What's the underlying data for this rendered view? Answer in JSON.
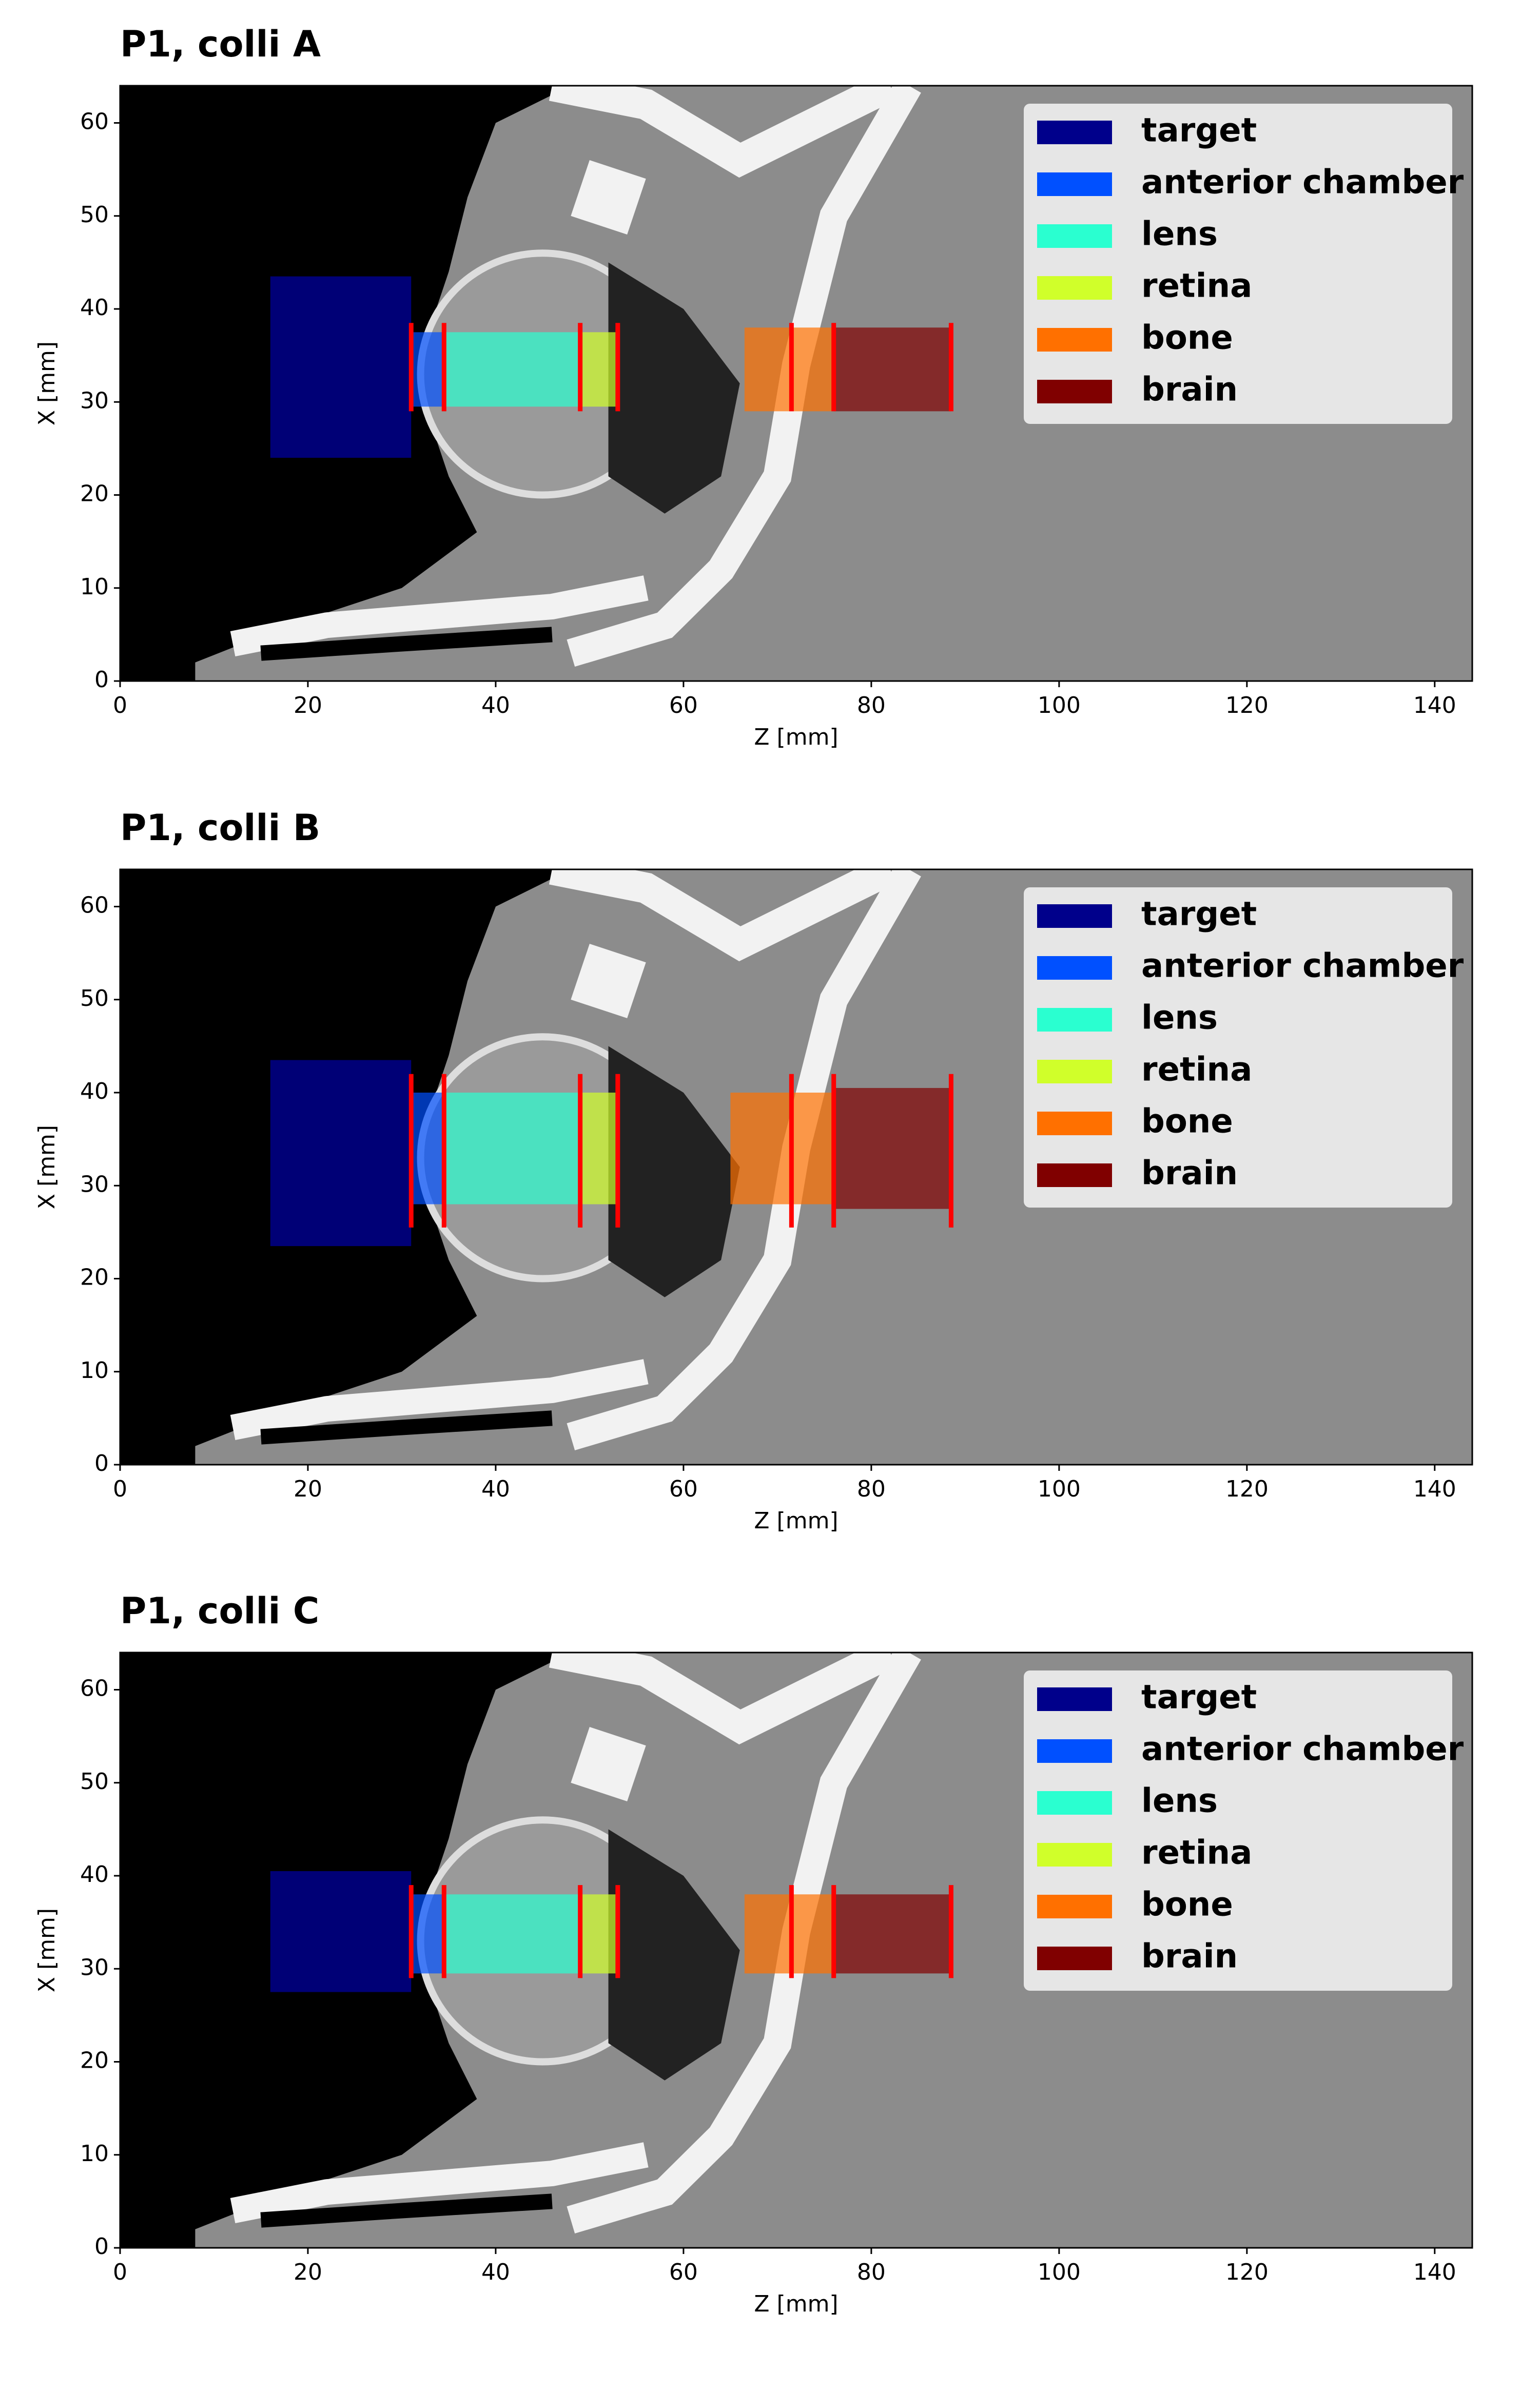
{
  "chart_data": [
    {
      "type": "image-overlay",
      "title": "P1, colli A",
      "xlabel": "Z [mm]",
      "ylabel": "X [mm]",
      "xlim": [
        0,
        144
      ],
      "ylim": [
        0,
        64
      ],
      "xticks": [
        0,
        20,
        40,
        60,
        80,
        100,
        120,
        140
      ],
      "yticks": [
        0,
        10,
        20,
        30,
        40,
        50,
        60
      ],
      "legend_loc": "upper right",
      "series": [
        {
          "name": "target",
          "color": "#00008b",
          "z": [
            16,
            31
          ],
          "x": [
            24,
            43.5
          ]
        },
        {
          "name": "anterior chamber",
          "color": "#0050ff",
          "z": [
            31,
            34.5
          ],
          "x": [
            29.5,
            37.5
          ]
        },
        {
          "name": "lens",
          "color": "#2affd0",
          "z": [
            34.5,
            49
          ],
          "x": [
            29.5,
            37.5
          ]
        },
        {
          "name": "retina",
          "color": "#d0ff2a",
          "z": [
            49,
            53
          ],
          "x": [
            29.5,
            37.5
          ]
        },
        {
          "name": "bone",
          "color": "#ff7000",
          "z": [
            66.5,
            76
          ],
          "x": [
            29,
            38
          ]
        },
        {
          "name": "brain",
          "color": "#800000",
          "z": [
            76,
            88.5
          ],
          "x": [
            29,
            38
          ]
        }
      ],
      "boundaries": {
        "color": "#ff0000",
        "z": [
          31,
          34.5,
          49,
          53,
          71.5,
          76,
          88.5
        ],
        "x": [
          29,
          38.5
        ]
      }
    },
    {
      "type": "image-overlay",
      "title": "P1, colli B",
      "xlabel": "Z [mm]",
      "ylabel": "X [mm]",
      "xlim": [
        0,
        144
      ],
      "ylim": [
        0,
        64
      ],
      "xticks": [
        0,
        20,
        40,
        60,
        80,
        100,
        120,
        140
      ],
      "yticks": [
        0,
        10,
        20,
        30,
        40,
        50,
        60
      ],
      "legend_loc": "upper right",
      "series": [
        {
          "name": "target",
          "color": "#00008b",
          "z": [
            16,
            31
          ],
          "x": [
            23.5,
            43.5
          ]
        },
        {
          "name": "anterior chamber",
          "color": "#0050ff",
          "z": [
            31,
            34.5
          ],
          "x": [
            28,
            40
          ]
        },
        {
          "name": "lens",
          "color": "#2affd0",
          "z": [
            34.5,
            49
          ],
          "x": [
            28,
            40
          ]
        },
        {
          "name": "retina",
          "color": "#d0ff2a",
          "z": [
            49,
            53
          ],
          "x": [
            28,
            40
          ]
        },
        {
          "name": "bone",
          "color": "#ff7000",
          "z": [
            65,
            76
          ],
          "x": [
            28,
            40
          ]
        },
        {
          "name": "brain",
          "color": "#800000",
          "z": [
            76,
            88.5
          ],
          "x": [
            27.5,
            40.5
          ]
        }
      ],
      "boundaries": {
        "color": "#ff0000",
        "z": [
          31,
          34.5,
          49,
          53,
          71.5,
          76,
          88.5
        ],
        "x": [
          25.5,
          42
        ]
      }
    },
    {
      "type": "image-overlay",
      "title": "P1, colli C",
      "xlabel": "Z [mm]",
      "ylabel": "X [mm]",
      "xlim": [
        0,
        144
      ],
      "ylim": [
        0,
        64
      ],
      "xticks": [
        0,
        20,
        40,
        60,
        80,
        100,
        120,
        140
      ],
      "yticks": [
        0,
        10,
        20,
        30,
        40,
        50,
        60
      ],
      "legend_loc": "upper right",
      "series": [
        {
          "name": "target",
          "color": "#00008b",
          "z": [
            16,
            31
          ],
          "x": [
            27.5,
            40.5
          ]
        },
        {
          "name": "anterior chamber",
          "color": "#0050ff",
          "z": [
            31,
            34.5
          ],
          "x": [
            29.5,
            38
          ]
        },
        {
          "name": "lens",
          "color": "#2affd0",
          "z": [
            34.5,
            49
          ],
          "x": [
            29.5,
            38
          ]
        },
        {
          "name": "retina",
          "color": "#d0ff2a",
          "z": [
            49,
            53
          ],
          "x": [
            29.5,
            38
          ]
        },
        {
          "name": "bone",
          "color": "#ff7000",
          "z": [
            66.5,
            76
          ],
          "x": [
            29.5,
            38
          ]
        },
        {
          "name": "brain",
          "color": "#800000",
          "z": [
            76,
            88.5
          ],
          "x": [
            29.5,
            38
          ]
        }
      ],
      "boundaries": {
        "color": "#ff0000",
        "z": [
          31,
          34.5,
          49,
          53,
          71.5,
          76,
          88.5
        ],
        "x": [
          29,
          39
        ]
      }
    }
  ]
}
